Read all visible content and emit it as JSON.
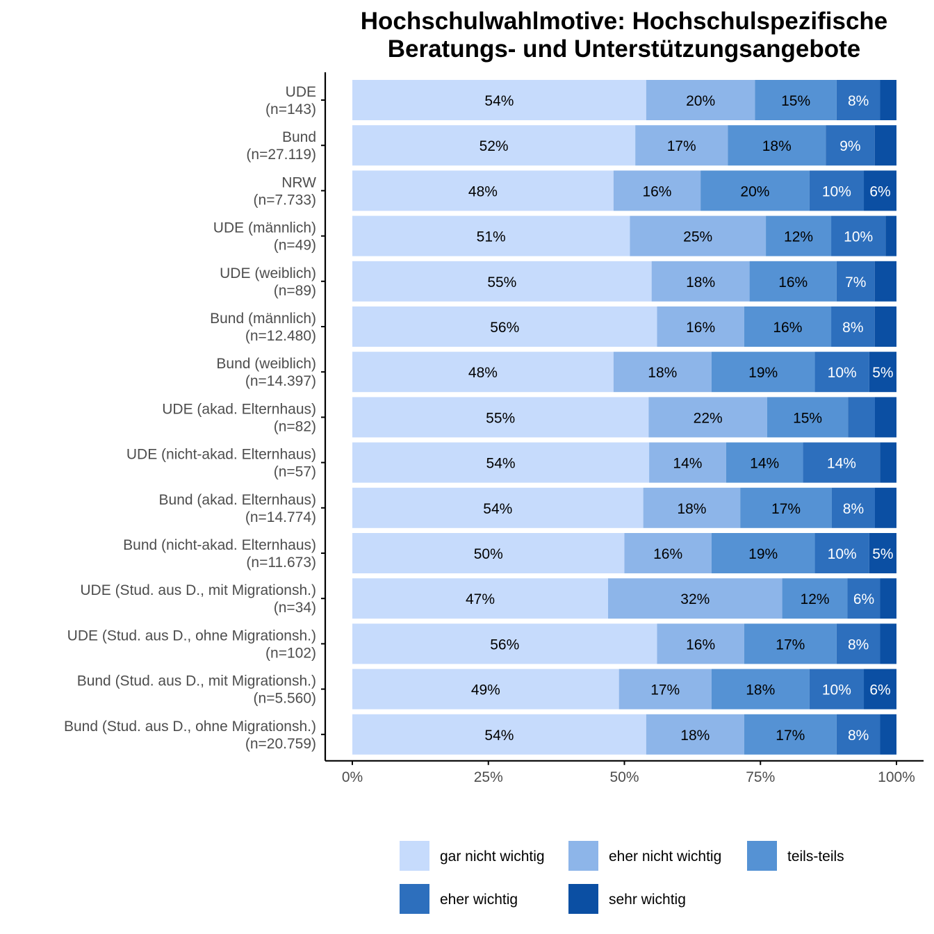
{
  "chart_data": {
    "type": "bar",
    "orientation": "horizontal",
    "stacked": "percent",
    "title": "Hochschulwahlmotive: Hochschulspezifische",
    "subtitle": "Beratungs- und Unterstützungsangebote",
    "xlabel": "",
    "ylabel": "",
    "xlim": [
      0,
      100
    ],
    "x_ticks": [
      "0%",
      "25%",
      "50%",
      "75%",
      "100%"
    ],
    "legend_position": "bottom",
    "categories": [
      {
        "name": "UDE",
        "n": "(n=143)"
      },
      {
        "name": "Bund",
        "n": "(n=27.119)"
      },
      {
        "name": "NRW",
        "n": "(n=7.733)"
      },
      {
        "name": "UDE (männlich)",
        "n": "(n=49)"
      },
      {
        "name": "UDE (weiblich)",
        "n": "(n=89)"
      },
      {
        "name": "Bund (männlich)",
        "n": "(n=12.480)"
      },
      {
        "name": "Bund (weiblich)",
        "n": "(n=14.397)"
      },
      {
        "name": "UDE (akad. Elternhaus)",
        "n": "(n=82)"
      },
      {
        "name": "UDE (nicht-akad. Elternhaus)",
        "n": "(n=57)"
      },
      {
        "name": "Bund (akad. Elternhaus)",
        "n": "(n=14.774)"
      },
      {
        "name": "Bund (nicht-akad. Elternhaus)",
        "n": "(n=11.673)"
      },
      {
        "name": "UDE (Stud. aus D., mit Migrationsh.)",
        "n": "(n=34)"
      },
      {
        "name": "UDE (Stud. aus D., ohne Migrationsh.)",
        "n": "(n=102)"
      },
      {
        "name": "Bund (Stud. aus D., mit Migrationsh.)",
        "n": "(n=5.560)"
      },
      {
        "name": "Bund (Stud. aus D., ohne Migrationsh.)",
        "n": "(n=20.759)"
      }
    ],
    "series": [
      {
        "name": "gar nicht wichtig",
        "color": "#c6dbfc",
        "label_color": "#000000",
        "values": [
          54,
          52,
          48,
          51,
          55,
          56,
          48,
          55,
          54,
          54,
          50,
          47,
          56,
          49,
          54
        ],
        "labels": [
          "54%",
          "52%",
          "48%",
          "51%",
          "55%",
          "56%",
          "48%",
          "55%",
          "54%",
          "54%",
          "50%",
          "47%",
          "56%",
          "49%",
          "54%"
        ]
      },
      {
        "name": "eher nicht wichtig",
        "color": "#8db5e9",
        "label_color": "#000000",
        "values": [
          20,
          17,
          16,
          25,
          18,
          16,
          18,
          22,
          14,
          18,
          16,
          32,
          16,
          17,
          18
        ],
        "labels": [
          "20%",
          "17%",
          "16%",
          "25%",
          "18%",
          "16%",
          "18%",
          "22%",
          "14%",
          "18%",
          "16%",
          "32%",
          "16%",
          "17%",
          "18%"
        ]
      },
      {
        "name": "teils-teils",
        "color": "#5592d4",
        "label_color": "#000000",
        "values": [
          15,
          18,
          20,
          12,
          16,
          16,
          19,
          15,
          14,
          17,
          19,
          12,
          17,
          18,
          17
        ],
        "labels": [
          "15%",
          "18%",
          "20%",
          "12%",
          "16%",
          "16%",
          "19%",
          "15%",
          "14%",
          "17%",
          "19%",
          "12%",
          "17%",
          "18%",
          "17%"
        ]
      },
      {
        "name": "eher wichtig",
        "color": "#2d6fbd",
        "label_color": "#ffffff",
        "values": [
          8,
          9,
          10,
          10,
          7,
          8,
          10,
          5,
          14,
          8,
          10,
          6,
          8,
          10,
          8
        ],
        "labels": [
          "8%",
          "9%",
          "10%",
          "10%",
          "7%",
          "8%",
          "10%",
          "",
          "14%",
          "8%",
          "10%",
          "6%",
          "8%",
          "10%",
          "8%"
        ]
      },
      {
        "name": "sehr wichtig",
        "color": "#0b4fa3",
        "label_color": "#ffffff",
        "values": [
          3,
          4,
          6,
          2,
          4,
          4,
          5,
          4,
          3,
          4,
          5,
          3,
          3,
          6,
          3
        ],
        "labels": [
          "",
          "",
          "6%",
          "",
          "",
          "",
          "5%",
          "",
          "",
          "",
          "5%",
          "",
          "",
          "6%",
          ""
        ]
      }
    ]
  }
}
